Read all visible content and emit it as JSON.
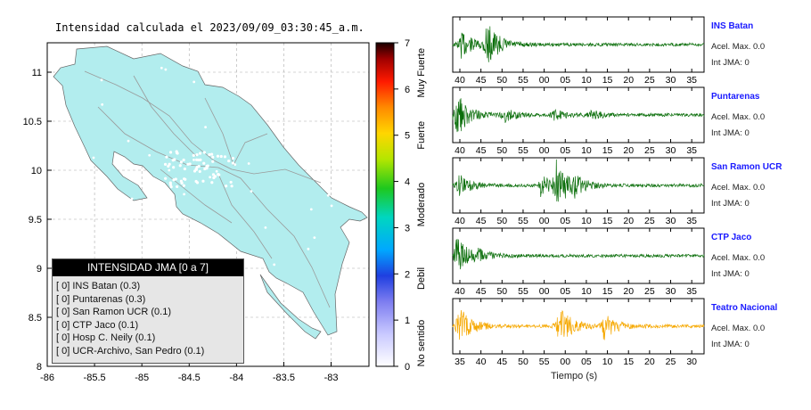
{
  "chart_data": [
    {
      "type": "heatmap",
      "title": "Intensidad calculada el 2023/09/09_03:30:45_a.m.",
      "xlim": [
        -86,
        -82.6
      ],
      "ylim": [
        8,
        11.3
      ],
      "x_ticks": [
        -86,
        -85.5,
        -85,
        -84.5,
        -84,
        -83.5,
        -83
      ],
      "y_ticks": [
        8,
        8.5,
        9,
        9.5,
        10,
        10.5,
        11
      ],
      "land_color": "#b2edee",
      "colorbar": {
        "range": [
          0,
          7
        ],
        "ticks": [
          0,
          1,
          2,
          3,
          4,
          5,
          6,
          7
        ],
        "labels": [
          "No sentido",
          "Debil",
          "Moderado",
          "Fuerte",
          "Muy Fuerte"
        ]
      },
      "legend": {
        "title": "INTENSIDAD JMA [0 a 7]",
        "placement": "bottom-left",
        "entries": [
          "[ 0] INS Batan (0.3)",
          "[ 0] Puntarenas (0.3)",
          "[ 0] San Ramon UCR (0.1)",
          "[ 0] CTP Jaco (0.1)",
          "[ 0] Hosp C. Neily (0.1)",
          "[ 0] UCR-Archivo, San Pedro (0.1)"
        ]
      }
    },
    {
      "type": "line",
      "xlabel": "Tiempo (s)",
      "series": [
        {
          "name": "INS Batan",
          "color": "#0a6e0a",
          "accel_label": "Acel. Max. 0.0",
          "int_label": "Int JMA: 0",
          "tick_labels": [
            "40",
            "45",
            "50",
            "55",
            "00",
            "05",
            "10",
            "15",
            "20",
            "25",
            "30",
            "35"
          ],
          "burst": [
            {
              "at": 0.03,
              "amp": 0.55
            },
            {
              "at": 0.13,
              "amp": 0.9
            }
          ]
        },
        {
          "name": "Puntarenas",
          "color": "#0a6e0a",
          "accel_label": "Acel. Max. 0.0",
          "int_label": "Int JMA: 0",
          "tick_labels": [
            "40",
            "45",
            "50",
            "55",
            "00",
            "05",
            "10",
            "15",
            "20",
            "25",
            "30",
            "35"
          ],
          "burst": [
            {
              "at": 0.01,
              "amp": 0.95
            },
            {
              "at": 0.2,
              "amp": 0.3
            },
            {
              "at": 0.4,
              "amp": 0.2
            },
            {
              "at": 0.55,
              "amp": 0.18
            }
          ]
        },
        {
          "name": "San Ramon UCR",
          "color": "#0a6e0a",
          "accel_label": "Acel. Max. 0.0",
          "int_label": "Int JMA: 0",
          "tick_labels": [
            "40",
            "45",
            "50",
            "55",
            "00",
            "05",
            "10",
            "15",
            "20",
            "25",
            "30",
            "35"
          ],
          "burst": [
            {
              "at": 0.02,
              "amp": 0.45
            },
            {
              "at": 0.35,
              "amp": 0.4
            },
            {
              "at": 0.41,
              "amp": 0.9
            },
            {
              "at": 0.48,
              "amp": 0.3
            }
          ]
        },
        {
          "name": "CTP Jaco",
          "color": "#0a6e0a",
          "accel_label": "Acel. Max. 0.0",
          "int_label": "Int JMA: 0",
          "tick_labels": [
            "40",
            "45",
            "50",
            "55",
            "00",
            "05",
            "10",
            "15",
            "20",
            "25",
            "30",
            "35"
          ],
          "burst": [
            {
              "at": 0.01,
              "amp": 0.8
            },
            {
              "at": 0.1,
              "amp": 0.2
            }
          ]
        },
        {
          "name": "Teatro Nacional",
          "color": "#f6a800",
          "accel_label": "Acel. Max. 0.0",
          "int_label": "Int JMA: 0",
          "tick_labels": [
            "35",
            "40",
            "45",
            "50",
            "55",
            "00",
            "05",
            "10",
            "15",
            "20",
            "25",
            "30"
          ],
          "burst": [
            {
              "at": 0.02,
              "amp": 0.85
            },
            {
              "at": 0.42,
              "amp": 0.9
            },
            {
              "at": 0.6,
              "amp": 0.5
            }
          ]
        }
      ]
    }
  ]
}
